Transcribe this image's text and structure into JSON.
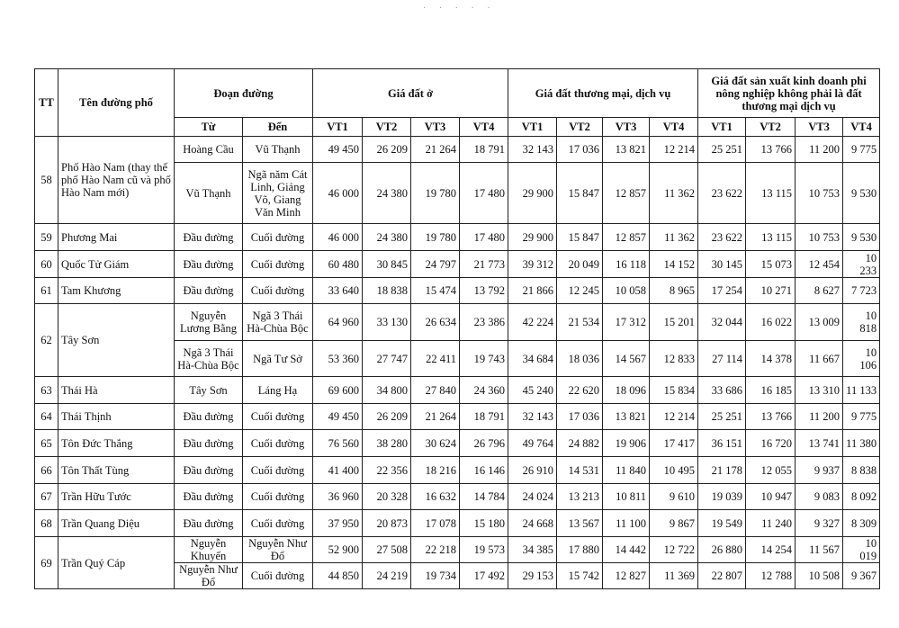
{
  "header": {
    "tt": "TT",
    "name": "Tên đường phố",
    "segment": "Đoạn đường",
    "from": "Từ",
    "to": "Đến",
    "groups": [
      "Giá đất ở",
      "Giá đất thương mại, dịch vụ",
      "Giá đất sản xuất kinh doanh phi nông nghiệp không phải là đất thương mại dịch vụ"
    ],
    "positions": [
      "VT1",
      "VT2",
      "VT3",
      "VT4"
    ]
  },
  "rows": [
    {
      "tt": "58",
      "name": "Phố Hào Nam (thay thế phố Hào Nam cũ và phố Hào Nam mới)",
      "segments": [
        {
          "from": "Hoàng Cầu",
          "to": "Vũ Thạnh",
          "values": [
            "49 450",
            "26 209",
            "21 264",
            "18 791",
            "32 143",
            "17 036",
            "13 821",
            "12 214",
            "25 251",
            "13 766",
            "11 200",
            "9 775"
          ]
        },
        {
          "from": "Vũ Thạnh",
          "to": "Ngã năm Cát Linh, Giảng Võ, Giang Văn Minh",
          "values": [
            "46 000",
            "24 380",
            "19 780",
            "17 480",
            "29 900",
            "15 847",
            "12 857",
            "11 362",
            "23 622",
            "13 115",
            "10 753",
            "9 530"
          ]
        }
      ]
    },
    {
      "tt": "59",
      "name": "Phương Mai",
      "segments": [
        {
          "from": "Đầu đường",
          "to": "Cuối đường",
          "values": [
            "46 000",
            "24 380",
            "19 780",
            "17 480",
            "29 900",
            "15 847",
            "12 857",
            "11 362",
            "23 622",
            "13 115",
            "10 753",
            "9 530"
          ]
        }
      ]
    },
    {
      "tt": "60",
      "name": "Quốc Tử Giám",
      "segments": [
        {
          "from": "Đầu đường",
          "to": "Cuối đường",
          "values": [
            "60 480",
            "30 845",
            "24 797",
            "21 773",
            "39 312",
            "20 049",
            "16 118",
            "14 152",
            "30 145",
            "15 073",
            "12 454",
            "10 233"
          ]
        }
      ]
    },
    {
      "tt": "61",
      "name": "Tam Khương",
      "segments": [
        {
          "from": "Đầu đường",
          "to": "Cuối đường",
          "values": [
            "33 640",
            "18 838",
            "15 474",
            "13 792",
            "21 866",
            "12 245",
            "10 058",
            "8 965",
            "17 254",
            "10 271",
            "8 627",
            "7 723"
          ]
        }
      ]
    },
    {
      "tt": "62",
      "name": "Tây Sơn",
      "segments": [
        {
          "from": "Nguyễn Lương Bằng",
          "to": "Ngã 3 Thái Hà-Chùa Bộc",
          "values": [
            "64 960",
            "33 130",
            "26 634",
            "23 386",
            "42 224",
            "21 534",
            "17 312",
            "15 201",
            "32 044",
            "16 022",
            "13 009",
            "10 818"
          ]
        },
        {
          "from": "Ngã 3 Thái Hà-Chùa Bộc",
          "to": "Ngã Tư Sở",
          "values": [
            "53 360",
            "27 747",
            "22 411",
            "19 743",
            "34 684",
            "18 036",
            "14 567",
            "12 833",
            "27 114",
            "14 378",
            "11 667",
            "10 106"
          ]
        }
      ]
    },
    {
      "tt": "63",
      "name": "Thái Hà",
      "segments": [
        {
          "from": "Tây Sơn",
          "to": "Láng Hạ",
          "values": [
            "69 600",
            "34 800",
            "27 840",
            "24 360",
            "45 240",
            "22 620",
            "18 096",
            "15 834",
            "33 686",
            "16 185",
            "13 310",
            "11 133"
          ]
        }
      ]
    },
    {
      "tt": "64",
      "name": "Thái Thịnh",
      "segments": [
        {
          "from": "Đầu đường",
          "to": "Cuối đường",
          "values": [
            "49 450",
            "26 209",
            "21 264",
            "18 791",
            "32 143",
            "17 036",
            "13 821",
            "12 214",
            "25 251",
            "13 766",
            "11 200",
            "9 775"
          ]
        }
      ]
    },
    {
      "tt": "65",
      "name": "Tôn Đức Thắng",
      "segments": [
        {
          "from": "Đầu đường",
          "to": "Cuối đường",
          "values": [
            "76 560",
            "38 280",
            "30 624",
            "26 796",
            "49 764",
            "24 882",
            "19 906",
            "17 417",
            "36 151",
            "16 720",
            "13 741",
            "11 380"
          ]
        }
      ]
    },
    {
      "tt": "66",
      "name": "Tôn Thất Tùng",
      "segments": [
        {
          "from": "Đầu đường",
          "to": "Cuối đường",
          "values": [
            "41 400",
            "22 356",
            "18 216",
            "16 146",
            "26 910",
            "14 531",
            "11 840",
            "10 495",
            "21 178",
            "12 055",
            "9 937",
            "8 838"
          ]
        }
      ]
    },
    {
      "tt": "67",
      "name": "Trần Hữu Tước",
      "segments": [
        {
          "from": "Đầu đường",
          "to": "Cuối đường",
          "values": [
            "36 960",
            "20 328",
            "16 632",
            "14 784",
            "24 024",
            "13 213",
            "10 811",
            "9 610",
            "19 039",
            "10 947",
            "9 083",
            "8 092"
          ]
        }
      ]
    },
    {
      "tt": "68",
      "name": "Trần Quang Diệu",
      "segments": [
        {
          "from": "Đầu đường",
          "to": "Cuối đường",
          "values": [
            "37 950",
            "20 873",
            "17 078",
            "15 180",
            "24 668",
            "13 567",
            "11 100",
            "9 867",
            "19 549",
            "11 240",
            "9 327",
            "8 309"
          ]
        }
      ]
    },
    {
      "tt": "69",
      "name": "Trần Quý Cáp",
      "segments": [
        {
          "from": "Nguyễn Khuyến",
          "to": "Nguyễn Như Đổ",
          "values": [
            "52 900",
            "27 508",
            "22 218",
            "19 573",
            "34 385",
            "17 880",
            "14 442",
            "12 722",
            "26 880",
            "14 254",
            "11 567",
            "10 019"
          ]
        },
        {
          "from": "Nguyễn Như Đổ",
          "to": "Cuối đường",
          "values": [
            "44 850",
            "24 219",
            "19 734",
            "17 492",
            "29 153",
            "15 742",
            "12 827",
            "11 369",
            "22 807",
            "12 788",
            "10 508",
            "9 367"
          ]
        }
      ]
    }
  ]
}
